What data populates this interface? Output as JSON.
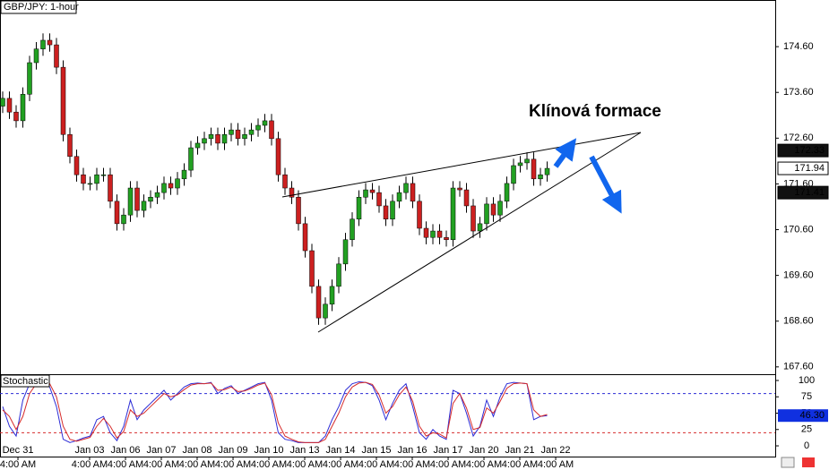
{
  "chart_data": [
    {
      "type": "candlestick",
      "title": "GBP/JPY: 1-hour",
      "annotations": [
        "Klínová formace"
      ],
      "x": [
        0,
        1,
        2,
        3,
        4,
        5,
        6,
        7,
        8,
        9,
        10,
        11,
        12,
        13,
        14,
        15,
        16,
        17,
        18,
        19,
        20,
        21,
        22,
        23,
        24,
        25,
        26,
        27,
        28,
        29,
        30,
        31,
        32,
        33,
        34,
        35,
        36,
        37,
        38,
        39,
        40,
        41,
        42,
        43,
        44,
        45,
        46,
        47,
        48,
        49,
        50,
        51,
        52,
        53,
        54,
        55,
        56,
        57,
        58,
        59,
        60,
        61,
        62,
        63,
        64,
        65,
        66,
        67,
        68,
        69,
        70,
        71,
        72,
        73,
        74,
        75,
        76,
        77,
        78,
        79,
        80,
        81
      ],
      "open": [
        173.3,
        173.47,
        173.17,
        172.98,
        173.56,
        174.25,
        174.55,
        174.74,
        174.64,
        174.15,
        172.68,
        172.2,
        171.8,
        171.61,
        171.61,
        171.8,
        171.8,
        171.22,
        170.73,
        170.92,
        171.51,
        171.02,
        171.22,
        171.31,
        171.41,
        171.61,
        171.51,
        171.71,
        171.9,
        172.39,
        172.49,
        172.59,
        172.68,
        172.49,
        172.68,
        172.78,
        172.59,
        172.68,
        172.78,
        172.88,
        172.98,
        172.59,
        171.8,
        171.51,
        171.31,
        170.73,
        170.14,
        169.36,
        168.67,
        168.97,
        169.36,
        169.85,
        170.38,
        170.83,
        171.31,
        171.47,
        171.41,
        171.12,
        170.83,
        171.22,
        171.41,
        171.61,
        171.22,
        170.63,
        170.43,
        170.57,
        170.43,
        170.38,
        171.51,
        171.47,
        171.12,
        170.57,
        170.73,
        171.16,
        170.92,
        171.22,
        171.61,
        172.0,
        172.06,
        172.14,
        171.71,
        171.8
      ],
      "high": [
        173.62,
        173.62,
        173.32,
        173.71,
        174.4,
        174.7,
        174.89,
        174.89,
        174.79,
        174.3,
        172.83,
        172.35,
        171.95,
        171.76,
        171.95,
        171.95,
        171.95,
        171.37,
        171.07,
        171.66,
        171.66,
        171.37,
        171.46,
        171.56,
        171.76,
        171.76,
        171.86,
        172.05,
        172.54,
        172.64,
        172.74,
        172.83,
        172.83,
        172.83,
        172.93,
        172.93,
        172.83,
        172.93,
        173.03,
        173.13,
        173.13,
        172.74,
        171.95,
        171.66,
        171.46,
        170.88,
        170.29,
        169.51,
        169.12,
        169.51,
        170.0,
        170.53,
        170.98,
        171.46,
        171.62,
        171.62,
        171.56,
        171.27,
        171.37,
        171.56,
        171.76,
        171.76,
        171.37,
        170.78,
        170.72,
        170.72,
        170.58,
        171.66,
        171.66,
        171.62,
        171.27,
        170.88,
        171.31,
        171.31,
        171.37,
        171.76,
        172.15,
        172.21,
        172.29,
        172.29,
        171.95,
        172.09
      ],
      "low": [
        173.15,
        173.02,
        172.83,
        172.83,
        173.41,
        174.1,
        174.4,
        174.49,
        174.0,
        172.53,
        172.05,
        171.65,
        171.46,
        171.46,
        171.46,
        171.65,
        171.07,
        170.58,
        170.58,
        170.77,
        170.87,
        170.87,
        171.07,
        171.16,
        171.26,
        171.36,
        171.36,
        171.56,
        171.75,
        172.24,
        172.34,
        172.44,
        172.34,
        172.34,
        172.53,
        172.44,
        172.44,
        172.53,
        172.63,
        172.73,
        172.44,
        171.65,
        171.36,
        171.16,
        170.58,
        169.99,
        169.21,
        168.52,
        168.52,
        168.82,
        169.21,
        169.7,
        170.23,
        170.68,
        171.16,
        171.26,
        170.97,
        170.68,
        170.68,
        171.07,
        171.26,
        171.07,
        170.48,
        170.28,
        170.28,
        170.28,
        170.23,
        170.23,
        171.32,
        170.97,
        170.42,
        170.42,
        170.58,
        170.77,
        170.77,
        171.07,
        171.46,
        171.85,
        171.91,
        171.56,
        171.56,
        171.65
      ],
      "close": [
        173.47,
        173.17,
        172.98,
        173.56,
        174.25,
        174.55,
        174.74,
        174.64,
        174.15,
        172.68,
        172.2,
        171.8,
        171.61,
        171.61,
        171.8,
        171.8,
        171.22,
        170.73,
        170.92,
        171.51,
        171.02,
        171.22,
        171.31,
        171.41,
        171.61,
        171.51,
        171.71,
        171.9,
        172.39,
        172.49,
        172.59,
        172.68,
        172.49,
        172.68,
        172.78,
        172.59,
        172.68,
        172.78,
        172.88,
        172.98,
        172.59,
        171.8,
        171.51,
        171.31,
        170.73,
        170.14,
        169.36,
        168.67,
        168.97,
        169.36,
        169.85,
        170.38,
        170.83,
        171.31,
        171.47,
        171.41,
        171.12,
        170.83,
        171.22,
        171.41,
        171.61,
        171.22,
        170.63,
        170.43,
        170.57,
        170.43,
        170.38,
        171.51,
        171.47,
        171.12,
        170.57,
        170.73,
        171.16,
        170.92,
        171.22,
        171.61,
        172.0,
        172.06,
        172.14,
        171.71,
        171.8,
        171.94
      ],
      "up_color": "#22a022",
      "down_color": "#cc2020",
      "xlim": [
        -0.4,
        114.93
      ],
      "ylim": [
        167.44,
        175.62
      ],
      "yticks": [
        {
          "value": 174.6,
          "label": "174.60"
        },
        {
          "value": 173.6,
          "label": "173.60"
        },
        {
          "value": 172.6,
          "label": "172.60"
        },
        {
          "value": 171.6,
          "label": "171.60"
        },
        {
          "value": 170.6,
          "label": "170.60"
        },
        {
          "value": 169.6,
          "label": "169.60"
        },
        {
          "value": 168.6,
          "label": "168.60"
        },
        {
          "value": 167.6,
          "label": "167.60"
        }
      ],
      "price_tags": [
        172.33,
        171.94,
        171.41
      ]
    },
    {
      "type": "line",
      "title": "Stochastic",
      "x": [
        0,
        1,
        2,
        3,
        4,
        5,
        6,
        7,
        8,
        9,
        10,
        11,
        12,
        13,
        14,
        15,
        16,
        17,
        18,
        19,
        20,
        21,
        22,
        23,
        24,
        25,
        26,
        27,
        28,
        29,
        30,
        31,
        32,
        33,
        34,
        35,
        36,
        37,
        38,
        39,
        40,
        41,
        42,
        43,
        44,
        45,
        46,
        47,
        48,
        49,
        50,
        51,
        52,
        53,
        54,
        55,
        56,
        57,
        58,
        59,
        60,
        61,
        62,
        63,
        64,
        65,
        66,
        67,
        68,
        69,
        70,
        71,
        72,
        73,
        74,
        75,
        76,
        77,
        78,
        79,
        80,
        81
      ],
      "series": [
        {
          "color": "#2b2bd6",
          "values": [
            60,
            30,
            15,
            70,
            95,
            98,
            99,
            90,
            60,
            10,
            5,
            8,
            12,
            15,
            40,
            45,
            20,
            8,
            30,
            70,
            40,
            55,
            65,
            75,
            85,
            70,
            80,
            90,
            95,
            96,
            95,
            97,
            80,
            88,
            92,
            80,
            85,
            90,
            95,
            97,
            70,
            20,
            10,
            8,
            5,
            5,
            5,
            5,
            15,
            40,
            60,
            85,
            95,
            98,
            97,
            92,
            70,
            40,
            65,
            85,
            95,
            60,
            20,
            10,
            25,
            15,
            10,
            85,
            80,
            50,
            15,
            30,
            70,
            45,
            75,
            95,
            97,
            96,
            95,
            40,
            45,
            46.3
          ]
        },
        {
          "color": "#d62b2b",
          "values": [
            55,
            45,
            25,
            45,
            80,
            95,
            98,
            95,
            75,
            30,
            10,
            7,
            10,
            13,
            30,
            42,
            30,
            12,
            22,
            55,
            45,
            50,
            60,
            70,
            80,
            75,
            78,
            86,
            93,
            95,
            95,
            96,
            85,
            86,
            90,
            83,
            84,
            88,
            93,
            96,
            78,
            35,
            15,
            10,
            6,
            5,
            5,
            5,
            10,
            30,
            50,
            75,
            90,
            96,
            97,
            94,
            78,
            50,
            60,
            78,
            90,
            68,
            30,
            15,
            20,
            18,
            12,
            65,
            80,
            58,
            25,
            28,
            58,
            50,
            68,
            88,
            95,
            96,
            95,
            55,
            45,
            48
          ]
        }
      ],
      "levels": [
        {
          "value": 80,
          "color": "#2b2bd6"
        },
        {
          "value": 20,
          "color": "#d62b2b"
        }
      ],
      "xlim": [
        -0.4,
        114.93
      ],
      "ylim": [
        -16.4,
        108.2
      ],
      "yticks": [
        100,
        75,
        50,
        25,
        0
      ],
      "value_tag": {
        "value": 46.3,
        "label": "46.30"
      },
      "xticks": [
        {
          "value": 2.27,
          "label": "Dec 31"
        },
        {
          "value": 12.93,
          "label": "Jan 03"
        },
        {
          "value": 18.27,
          "label": "Jan 06"
        },
        {
          "value": 23.6,
          "label": "Jan 07"
        },
        {
          "value": 28.93,
          "label": "Jan 08"
        },
        {
          "value": 34.27,
          "label": "Jan 09"
        },
        {
          "value": 39.6,
          "label": "Jan 10"
        },
        {
          "value": 44.93,
          "label": "Jan 13"
        },
        {
          "value": 50.27,
          "label": "Jan 14"
        },
        {
          "value": 55.6,
          "label": "Jan 15"
        },
        {
          "value": 60.93,
          "label": "Jan 16"
        },
        {
          "value": 66.27,
          "label": "Jan 17"
        },
        {
          "value": 71.6,
          "label": "Jan 20"
        },
        {
          "value": 76.93,
          "label": "Jan 21"
        },
        {
          "value": 82.27,
          "label": "Jan 22"
        }
      ],
      "xtick_sublabels": [
        "4:00 AM",
        "4:00 AM",
        "4:00 AM",
        "4:00 AM",
        "4:00 AM",
        "4:00 AM",
        "4:00 AM",
        "4:00 AM",
        "4:00 AM",
        "4:00 AM",
        "4:00 AM",
        "4:00 AM",
        "4:00 AM",
        "4:00 AM",
        "4:00 AM"
      ]
    }
  ]
}
